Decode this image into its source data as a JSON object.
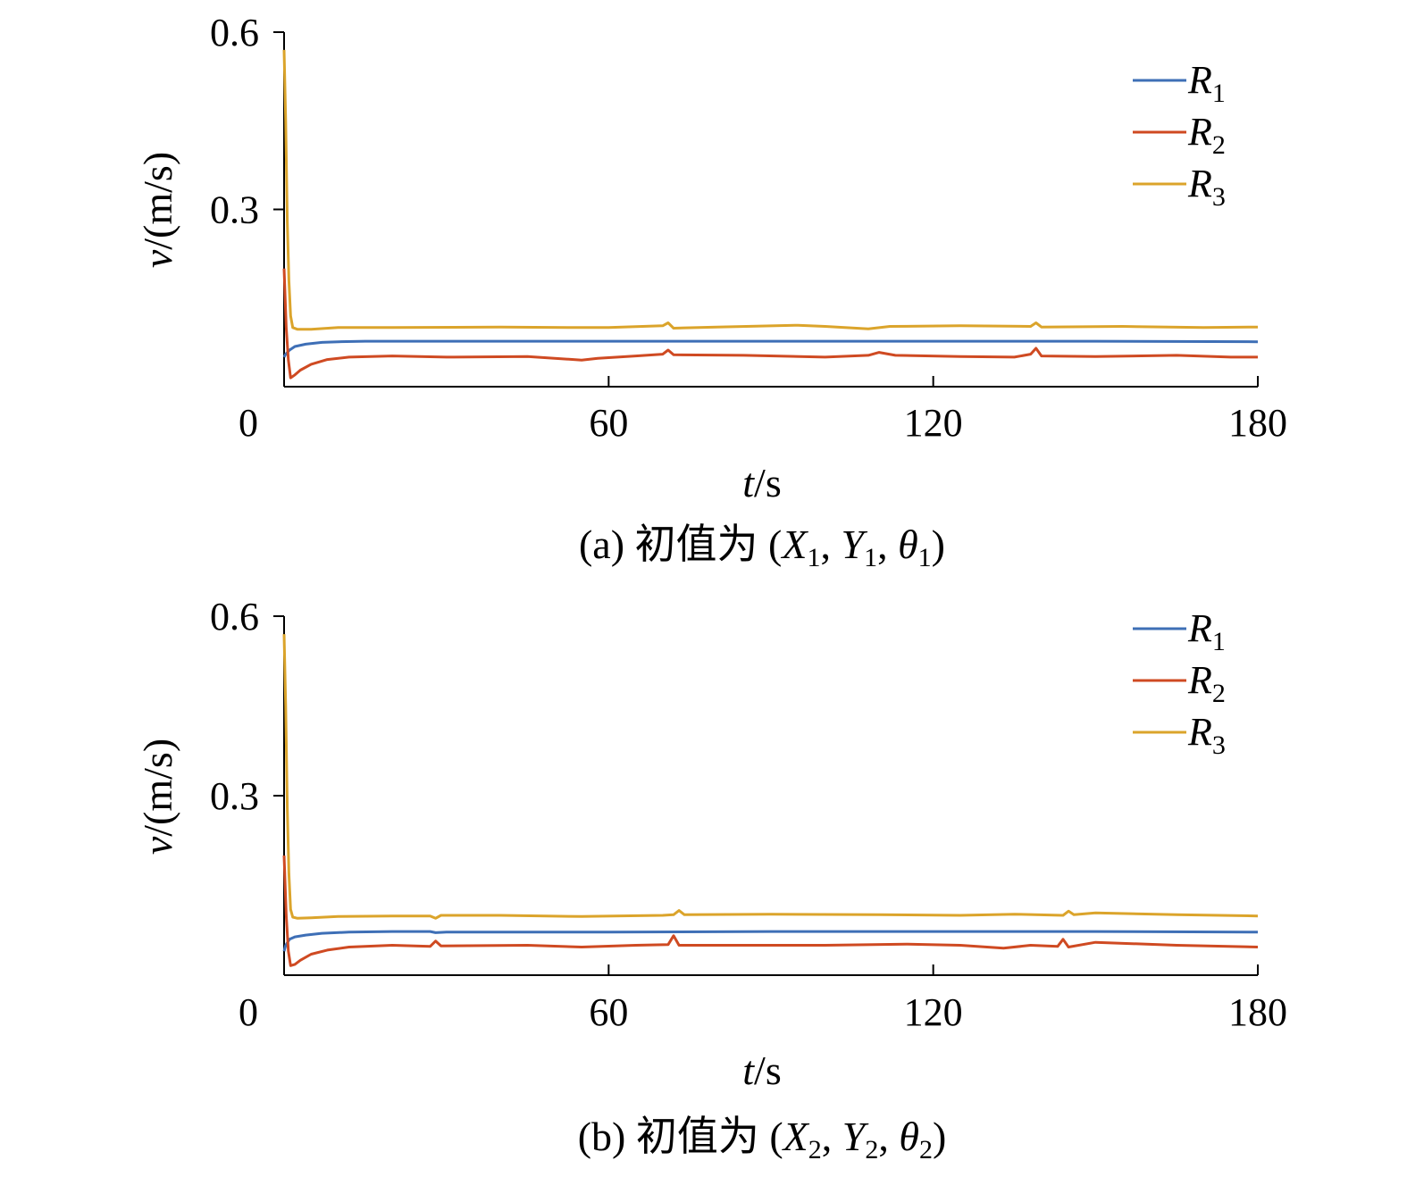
{
  "chart_data": [
    {
      "type": "line",
      "caption": "(a) 初值为 (X1, Y1, θ1)",
      "caption_parts": {
        "prefix": "(a) 初值为 (",
        "X": "X",
        "X_sub": "1",
        "Y": "Y",
        "Y_sub": "1",
        "theta": "θ",
        "theta_sub": "1",
        "suffix": ")"
      },
      "ylabel": {
        "var": "v",
        "unit": "/(m/s)"
      },
      "xlabel": {
        "var": "t",
        "unit": "/s"
      },
      "xlim": [
        0,
        180
      ],
      "ylim": [
        0,
        0.6
      ],
      "xticks": [
        "0",
        "60",
        "120",
        "180"
      ],
      "xtick_values": [
        0,
        60,
        120,
        180
      ],
      "yticks": [
        "0.3",
        "0.6"
      ],
      "ytick_values": [
        0.3,
        0.6
      ],
      "legend_position": "top-right",
      "series": [
        {
          "name": "R",
          "sub": "1",
          "color": "#3e6fb6",
          "points": [
            [
              0,
              0.05
            ],
            [
              0.3,
              0.055
            ],
            [
              1,
              0.062
            ],
            [
              2,
              0.068
            ],
            [
              4,
              0.072
            ],
            [
              7,
              0.075
            ],
            [
              10,
              0.076
            ],
            [
              15,
              0.077
            ],
            [
              20,
              0.077
            ],
            [
              30,
              0.077
            ],
            [
              60,
              0.077
            ],
            [
              90,
              0.077
            ],
            [
              120,
              0.077
            ],
            [
              150,
              0.077
            ],
            [
              180,
              0.076
            ]
          ]
        },
        {
          "name": "R",
          "sub": "2",
          "color": "#cf4a22",
          "points": [
            [
              0,
              0.2
            ],
            [
              0.4,
              0.1
            ],
            [
              0.8,
              0.045
            ],
            [
              1.2,
              0.015
            ],
            [
              2,
              0.02
            ],
            [
              3,
              0.028
            ],
            [
              5,
              0.038
            ],
            [
              8,
              0.046
            ],
            [
              12,
              0.05
            ],
            [
              16,
              0.051
            ],
            [
              20,
              0.052
            ],
            [
              30,
              0.05
            ],
            [
              45,
              0.051
            ],
            [
              55,
              0.045
            ],
            [
              58,
              0.048
            ],
            [
              65,
              0.052
            ],
            [
              70,
              0.055
            ],
            [
              71,
              0.062
            ],
            [
              72,
              0.054
            ],
            [
              85,
              0.053
            ],
            [
              100,
              0.05
            ],
            [
              108,
              0.053
            ],
            [
              110,
              0.058
            ],
            [
              113,
              0.053
            ],
            [
              125,
              0.051
            ],
            [
              135,
              0.05
            ],
            [
              138,
              0.055
            ],
            [
              139,
              0.065
            ],
            [
              140,
              0.052
            ],
            [
              150,
              0.051
            ],
            [
              165,
              0.053
            ],
            [
              175,
              0.05
            ],
            [
              180,
              0.05
            ]
          ]
        },
        {
          "name": "R",
          "sub": "3",
          "color": "#dba42b",
          "points": [
            [
              0,
              0.57
            ],
            [
              0.3,
              0.45
            ],
            [
              0.6,
              0.28
            ],
            [
              0.9,
              0.18
            ],
            [
              1.2,
              0.12
            ],
            [
              1.6,
              0.1
            ],
            [
              2.5,
              0.097
            ],
            [
              5,
              0.097
            ],
            [
              10,
              0.1
            ],
            [
              20,
              0.1
            ],
            [
              40,
              0.101
            ],
            [
              55,
              0.1
            ],
            [
              60,
              0.1
            ],
            [
              70,
              0.103
            ],
            [
              71,
              0.108
            ],
            [
              72,
              0.099
            ],
            [
              80,
              0.101
            ],
            [
              95,
              0.104
            ],
            [
              100,
              0.102
            ],
            [
              108,
              0.098
            ],
            [
              112,
              0.102
            ],
            [
              125,
              0.103
            ],
            [
              138,
              0.102
            ],
            [
              139,
              0.108
            ],
            [
              140,
              0.101
            ],
            [
              155,
              0.102
            ],
            [
              170,
              0.1
            ],
            [
              180,
              0.101
            ]
          ]
        }
      ]
    },
    {
      "type": "line",
      "caption": "(b) 初值为 (X2, Y2, θ2)",
      "caption_parts": {
        "prefix": "(b) 初值为 (",
        "X": "X",
        "X_sub": "2",
        "Y": "Y",
        "Y_sub": "2",
        "theta": "θ",
        "theta_sub": "2",
        "suffix": ")"
      },
      "ylabel": {
        "var": "v",
        "unit": "/(m/s)"
      },
      "xlabel": {
        "var": "t",
        "unit": "/s"
      },
      "xlim": [
        0,
        180
      ],
      "ylim": [
        0,
        0.6
      ],
      "xticks": [
        "0",
        "60",
        "120",
        "180"
      ],
      "xtick_values": [
        0,
        60,
        120,
        180
      ],
      "yticks": [
        "0.3",
        "0.6"
      ],
      "ytick_values": [
        0.3,
        0.6
      ],
      "legend_position": "top-right",
      "series": [
        {
          "name": "R",
          "sub": "1",
          "color": "#3e6fb6",
          "points": [
            [
              0,
              0.04
            ],
            [
              0.3,
              0.05
            ],
            [
              1,
              0.06
            ],
            [
              2,
              0.064
            ],
            [
              4,
              0.067
            ],
            [
              7,
              0.07
            ],
            [
              12,
              0.072
            ],
            [
              20,
              0.073
            ],
            [
              27,
              0.073
            ],
            [
              28,
              0.071
            ],
            [
              30,
              0.072
            ],
            [
              60,
              0.072
            ],
            [
              90,
              0.073
            ],
            [
              120,
              0.073
            ],
            [
              150,
              0.073
            ],
            [
              180,
              0.072
            ]
          ]
        },
        {
          "name": "R",
          "sub": "2",
          "color": "#cf4a22",
          "points": [
            [
              0,
              0.2
            ],
            [
              0.4,
              0.1
            ],
            [
              0.8,
              0.04
            ],
            [
              1.2,
              0.016
            ],
            [
              2,
              0.018
            ],
            [
              3,
              0.025
            ],
            [
              5,
              0.035
            ],
            [
              8,
              0.042
            ],
            [
              12,
              0.047
            ],
            [
              20,
              0.05
            ],
            [
              27,
              0.048
            ],
            [
              28,
              0.057
            ],
            [
              29,
              0.049
            ],
            [
              45,
              0.05
            ],
            [
              55,
              0.047
            ],
            [
              65,
              0.05
            ],
            [
              71,
              0.051
            ],
            [
              72,
              0.066
            ],
            [
              73,
              0.05
            ],
            [
              85,
              0.05
            ],
            [
              100,
              0.05
            ],
            [
              115,
              0.052
            ],
            [
              125,
              0.05
            ],
            [
              133,
              0.045
            ],
            [
              138,
              0.05
            ],
            [
              143,
              0.048
            ],
            [
              144,
              0.06
            ],
            [
              145,
              0.047
            ],
            [
              150,
              0.055
            ],
            [
              165,
              0.05
            ],
            [
              180,
              0.047
            ]
          ]
        },
        {
          "name": "R",
          "sub": "3",
          "color": "#dba42b",
          "points": [
            [
              0,
              0.57
            ],
            [
              0.3,
              0.45
            ],
            [
              0.6,
              0.28
            ],
            [
              0.9,
              0.17
            ],
            [
              1.2,
              0.11
            ],
            [
              1.6,
              0.097
            ],
            [
              2.5,
              0.095
            ],
            [
              5,
              0.096
            ],
            [
              10,
              0.098
            ],
            [
              20,
              0.099
            ],
            [
              27,
              0.099
            ],
            [
              28,
              0.095
            ],
            [
              29,
              0.1
            ],
            [
              40,
              0.1
            ],
            [
              55,
              0.098
            ],
            [
              70,
              0.1
            ],
            [
              72,
              0.101
            ],
            [
              73,
              0.108
            ],
            [
              74,
              0.101
            ],
            [
              90,
              0.102
            ],
            [
              110,
              0.101
            ],
            [
              125,
              0.1
            ],
            [
              135,
              0.102
            ],
            [
              144,
              0.1
            ],
            [
              145,
              0.107
            ],
            [
              146,
              0.101
            ],
            [
              150,
              0.104
            ],
            [
              165,
              0.101
            ],
            [
              180,
              0.099
            ]
          ]
        }
      ]
    }
  ]
}
